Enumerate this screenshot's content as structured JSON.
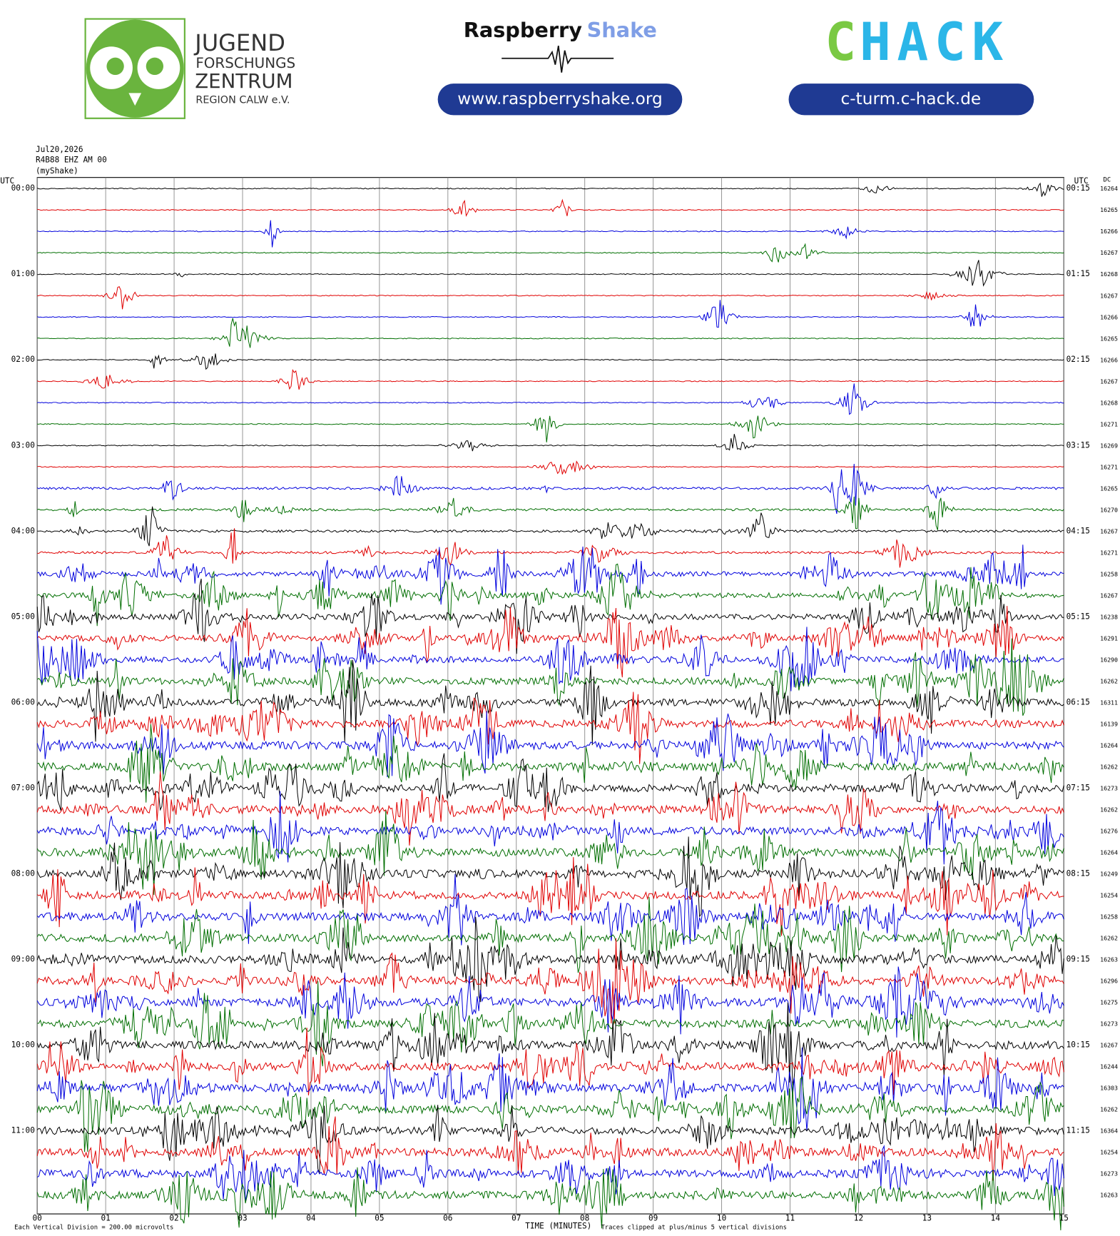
{
  "header": {
    "jfz": {
      "line1": "JUGEND",
      "line2": "FORSCHUNGS",
      "line3": "ZENTRUM",
      "line4": "REGION CALW e.V."
    },
    "raspberry_shake": {
      "word1": "Raspberry",
      "word2": "Shake",
      "url": "www.raspberryshake.org"
    },
    "chack": {
      "c": "C",
      "hack": "HACK",
      "url": "c-turm.c-hack.de"
    }
  },
  "plot": {
    "date": "Jul20,2026",
    "station": "R4B88 EHZ AM 00",
    "source": "(myShake)",
    "utc_left": "UTC",
    "utc_right": "UTC",
    "dc_header": "DC",
    "left_labels": [
      "00:00",
      "01:00",
      "02:00",
      "03:00",
      "04:00",
      "05:00",
      "06:00",
      "07:00",
      "08:00",
      "09:00",
      "10:00",
      "11:00"
    ],
    "right_labels": [
      "00:15",
      "01:15",
      "02:15",
      "03:15",
      "04:15",
      "05:15",
      "06:15",
      "07:15",
      "08:15",
      "09:15",
      "10:15",
      "11:15"
    ],
    "dc_values": [
      16264,
      16265,
      16266,
      16267,
      16268,
      16267,
      16266,
      16265,
      16266,
      16267,
      16268,
      16271,
      16269,
      16271,
      16265,
      16270,
      16267,
      16271,
      16258,
      16267,
      16238,
      16291,
      16290,
      16262,
      16311,
      16139,
      16264,
      16262,
      16273,
      16262,
      16276,
      16264,
      16249,
      16254,
      16258,
      16262,
      16263,
      16296,
      16275,
      16273,
      16267,
      16244,
      16303,
      16262,
      16364,
      16254,
      16273,
      16263
    ],
    "trace_colors": [
      "#000000",
      "#e00000",
      "#0000dd",
      "#006e00"
    ],
    "x_ticks": [
      "00",
      "01",
      "02",
      "03",
      "04",
      "05",
      "06",
      "07",
      "08",
      "09",
      "10",
      "11",
      "12",
      "13",
      "14",
      "15"
    ],
    "x_title": "TIME (MINUTES)",
    "footnote_left": "Each Vertical Division =  200.00 microvolts",
    "footnote_right": "Traces clipped at plus/minus 5 vertical divisions"
  }
}
